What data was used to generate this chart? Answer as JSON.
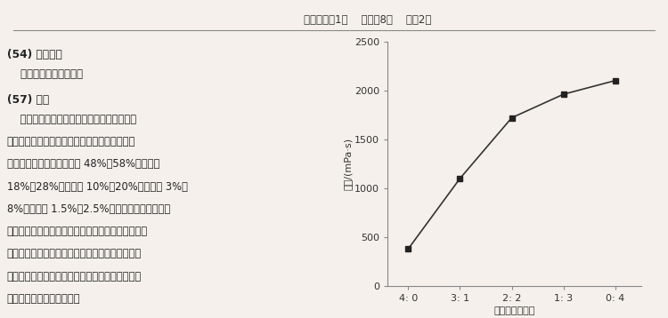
{
  "x_labels": [
    "4: 0",
    "3: 1",
    "2: 2",
    "1: 3",
    "0: 4"
  ],
  "x_positions": [
    0,
    1,
    2,
    3,
    4
  ],
  "y_values": [
    380,
    1100,
    1720,
    1960,
    2100
  ],
  "xlabel": "大枣粉：枸杞粉",
  "ylabel": "黏度/(mPa·s)",
  "ylim": [
    0,
    2500
  ],
  "yticks": [
    0,
    500,
    1000,
    1500,
    2000,
    2500
  ],
  "line_color": "#333333",
  "marker_color": "#222222",
  "bg_color": "#f5f0eb",
  "page_bg": "#f5f0eb",
  "header_text": "权利要求书1页    说明书8页    附图2页",
  "font_size_body": 8.5,
  "font_size_header": 8.5,
  "font_size_axis": 8.0,
  "marker_size": 5,
  "line_width": 1.2
}
